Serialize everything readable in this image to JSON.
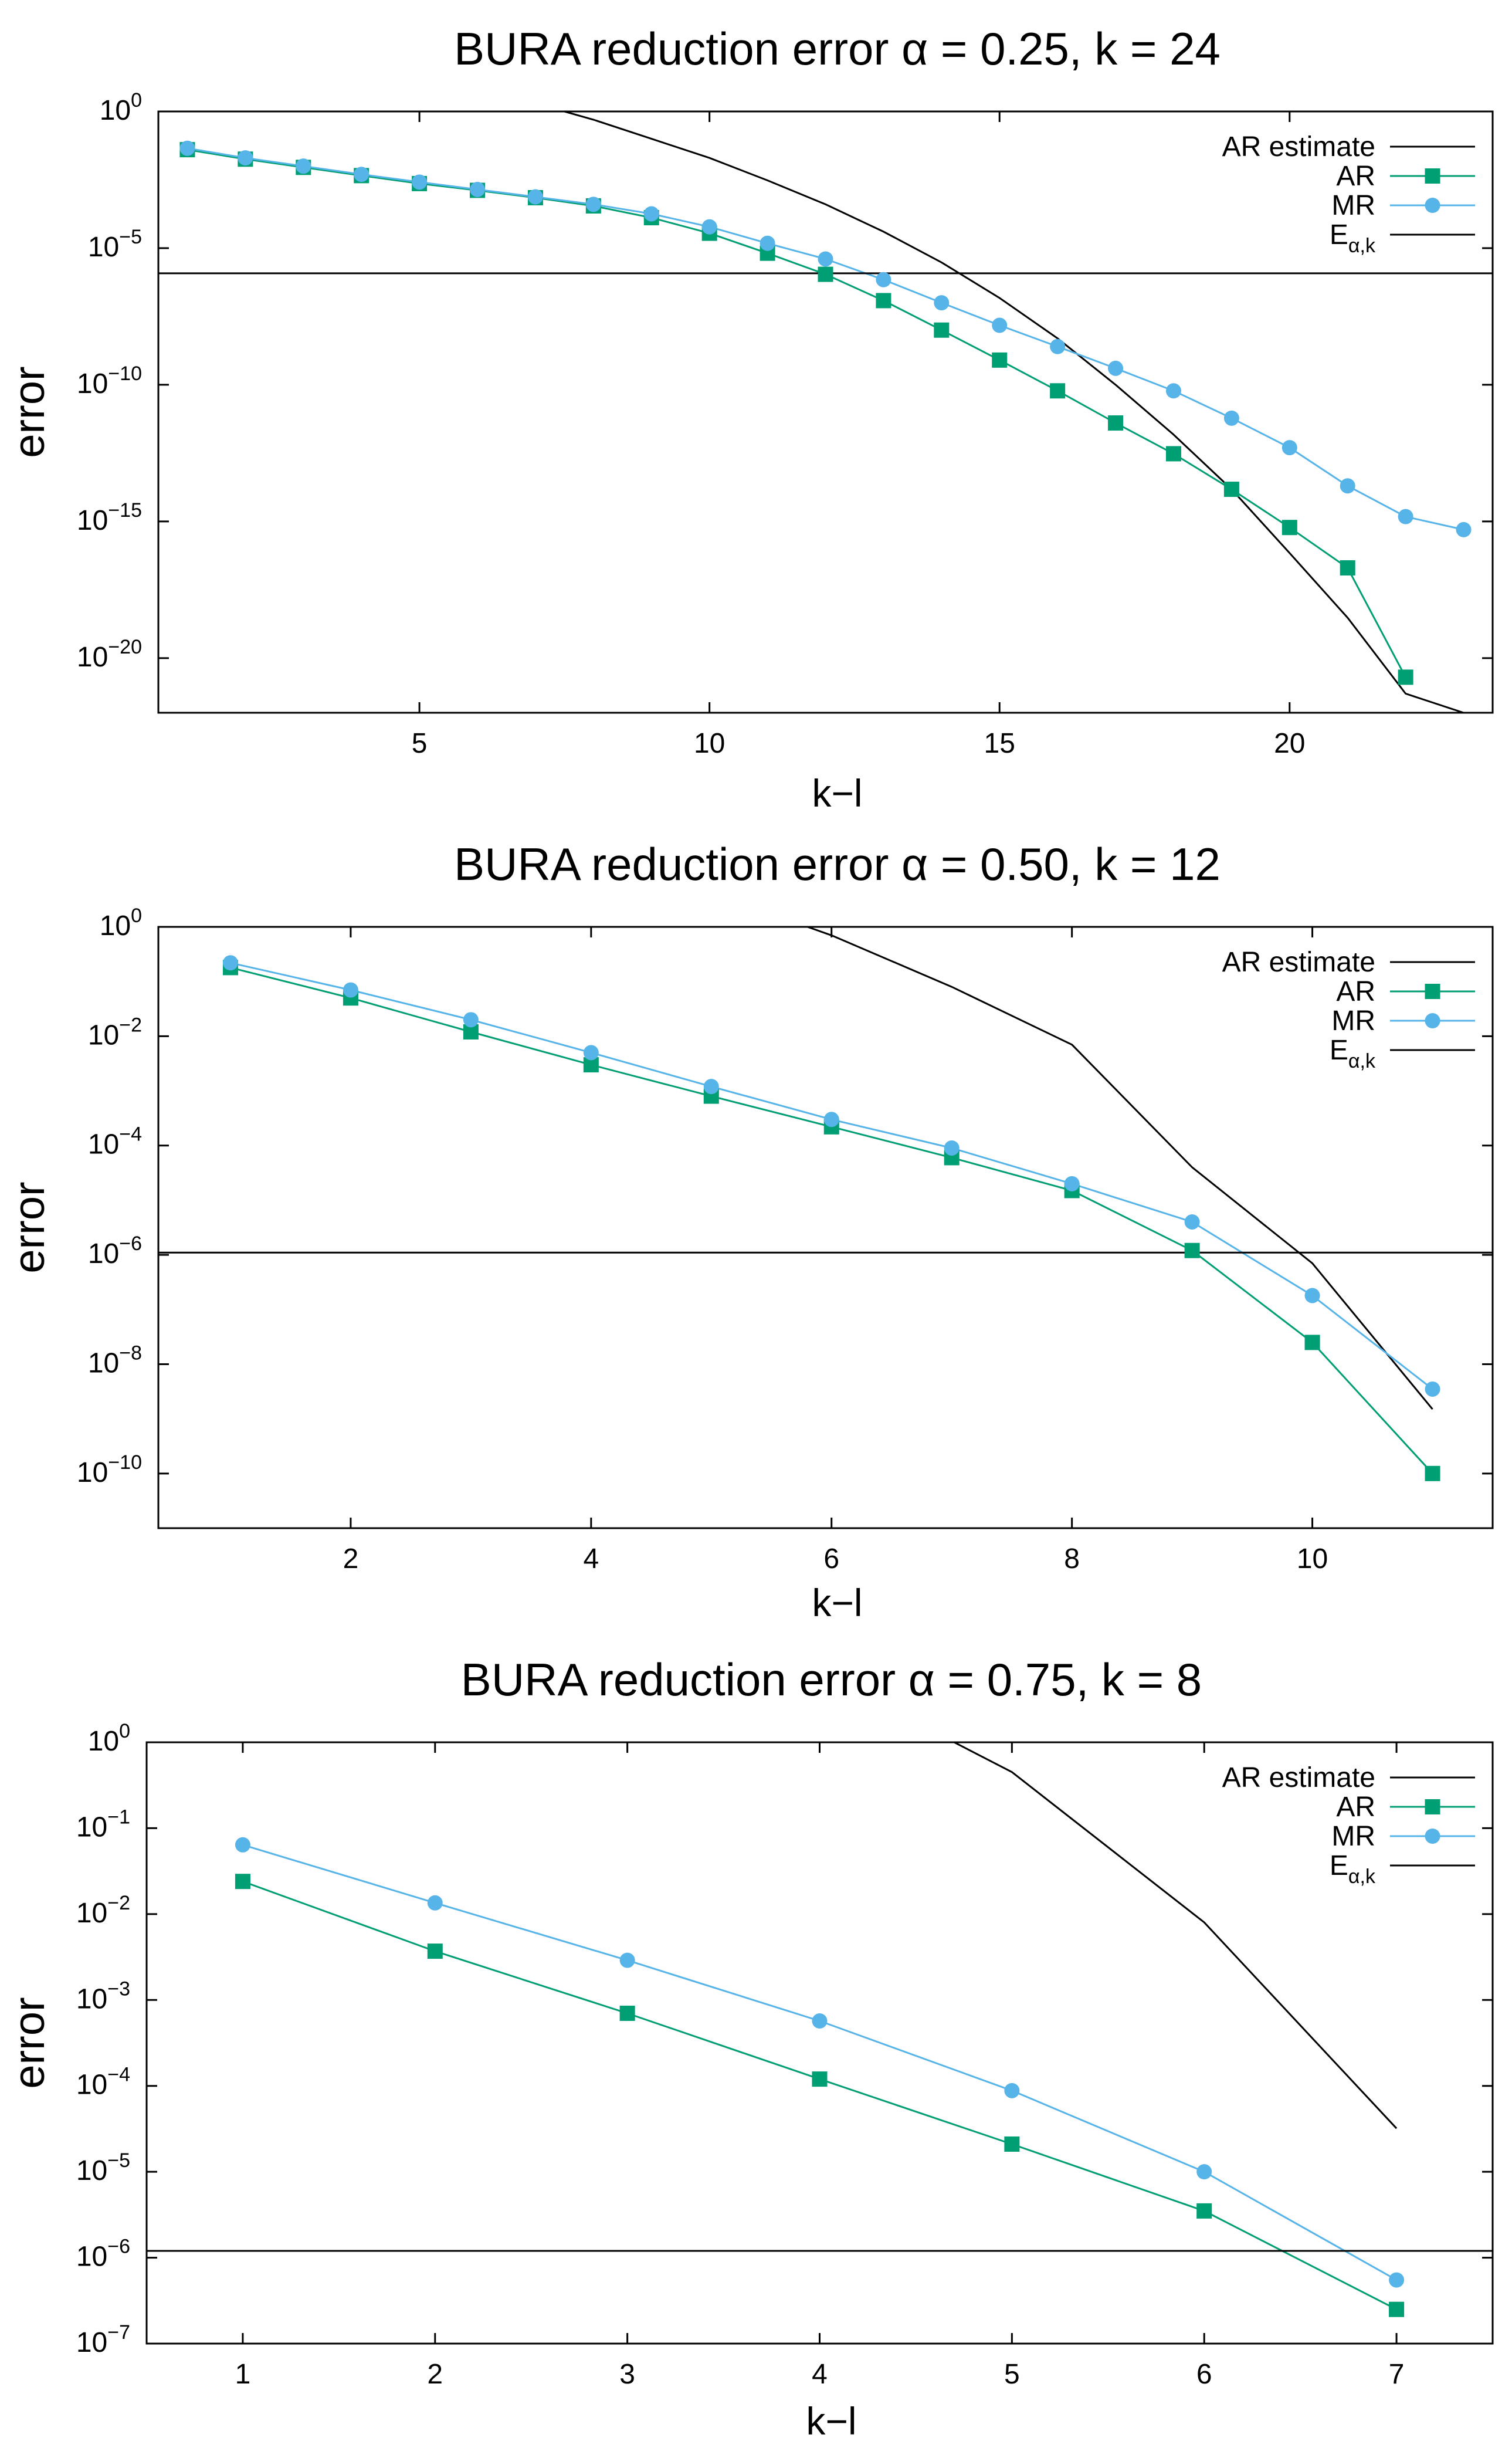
{
  "chart_data": [
    {
      "type": "line",
      "title": "BURA reduction error α = 0.25, k = 24",
      "xlabel": "k−l",
      "ylabel": "error",
      "yscale": "log",
      "xlim": [
        0.5,
        23.5
      ],
      "ylim": [
        1e-22,
        1
      ],
      "xticks": [
        5,
        10,
        15,
        20
      ],
      "yticks": [
        {
          "value": 1,
          "base": "10",
          "exp": "0"
        },
        {
          "value": 1e-05,
          "base": "10",
          "exp": "−5"
        },
        {
          "value": 1e-10,
          "base": "10",
          "exp": "−10"
        },
        {
          "value": 1e-15,
          "base": "10",
          "exp": "−15"
        },
        {
          "value": 1e-20,
          "base": "10",
          "exp": "−20"
        }
      ],
      "legend_position": "top-right",
      "series": [
        {
          "name": "AR estimate",
          "legend_label": "AR estimate",
          "style": "line",
          "color": "#000000",
          "x": [
            7.5,
            8,
            9,
            10,
            11,
            12,
            13,
            14,
            15,
            16,
            17,
            18,
            19,
            20,
            21,
            22,
            23
          ],
          "y": [
            1,
            0.5,
            0.1,
            0.02,
            0.003,
            0.0004,
            4e-05,
            3e-06,
            1.5e-07,
            5e-09,
            1e-10,
            1.5e-12,
            1.5e-14,
            7e-17,
            3e-19,
            5e-22,
            1e-22
          ]
        },
        {
          "name": "AR",
          "legend_label": "AR",
          "style": "line-square",
          "color": "#009e73",
          "x": [
            1,
            2,
            3,
            4,
            5,
            6,
            7,
            8,
            9,
            10,
            11,
            12,
            13,
            14,
            15,
            16,
            17,
            18,
            19,
            20,
            21,
            22
          ],
          "y": [
            0.04,
            0.018,
            0.009,
            0.0045,
            0.0023,
            0.0013,
            0.0007,
            0.00035,
            0.00013,
            3.5e-05,
            6.5e-06,
            1.1e-06,
            1.2e-07,
            1e-08,
            8e-10,
            6e-11,
            4e-12,
            3e-13,
            1.5e-14,
            6e-16,
            2e-17,
            2e-21
          ]
        },
        {
          "name": "MR",
          "legend_label": "MR",
          "style": "line-circle",
          "color": "#56b4e9",
          "x": [
            1,
            2,
            3,
            4,
            5,
            6,
            7,
            8,
            9,
            10,
            11,
            12,
            13,
            14,
            15,
            16,
            17,
            18,
            19,
            20,
            21,
            22,
            23
          ],
          "y": [
            0.045,
            0.02,
            0.01,
            0.005,
            0.0026,
            0.0014,
            0.00075,
            0.0004,
            0.00018,
            6e-05,
            1.5e-05,
            4e-06,
            7e-07,
            1e-07,
            1.5e-08,
            2.5e-09,
            4e-10,
            6e-11,
            6e-12,
            5e-13,
            2e-14,
            1.5e-15,
            5e-16
          ]
        },
        {
          "name": "E_alpha_k",
          "legend_base": "E",
          "legend_sub": "α,k",
          "style": "hline",
          "color": "#000000",
          "y": 1.2e-06
        }
      ]
    },
    {
      "type": "line",
      "title": "BURA reduction error α = 0.50, k = 12",
      "xlabel": "k−l",
      "ylabel": "error",
      "yscale": "log",
      "xlim": [
        0.4,
        11.5
      ],
      "ylim": [
        1e-11,
        1
      ],
      "xticks": [
        2,
        4,
        6,
        8,
        10
      ],
      "yticks": [
        {
          "value": 1,
          "base": "10",
          "exp": "0"
        },
        {
          "value": 0.01,
          "base": "10",
          "exp": "−2"
        },
        {
          "value": 0.0001,
          "base": "10",
          "exp": "−4"
        },
        {
          "value": 1e-06,
          "base": "10",
          "exp": "−6"
        },
        {
          "value": 1e-08,
          "base": "10",
          "exp": "−8"
        },
        {
          "value": 1e-10,
          "base": "10",
          "exp": "−10"
        }
      ],
      "legend_position": "top-right",
      "series": [
        {
          "name": "AR estimate",
          "legend_label": "AR estimate",
          "style": "line",
          "color": "#000000",
          "x": [
            5.8,
            6,
            7,
            8,
            9,
            10,
            11
          ],
          "y": [
            1,
            0.7,
            0.08,
            0.007,
            4e-05,
            7e-07,
            1.5e-09
          ]
        },
        {
          "name": "AR",
          "legend_label": "AR",
          "style": "line-square",
          "color": "#009e73",
          "x": [
            1,
            2,
            3,
            4,
            5,
            6,
            7,
            8,
            9,
            10,
            11
          ],
          "y": [
            0.18,
            0.05,
            0.012,
            0.003,
            0.0008,
            0.00022,
            6e-05,
            1.5e-05,
            1.2e-06,
            2.5e-08,
            1e-10
          ]
        },
        {
          "name": "MR",
          "legend_label": "MR",
          "style": "line-circle",
          "color": "#56b4e9",
          "x": [
            1,
            2,
            3,
            4,
            5,
            6,
            7,
            8,
            9,
            10,
            11
          ],
          "y": [
            0.22,
            0.07,
            0.02,
            0.005,
            0.0012,
            0.0003,
            9e-05,
            2e-05,
            4e-06,
            1.8e-07,
            3.5e-09
          ]
        },
        {
          "name": "E_alpha_k",
          "legend_base": "E",
          "legend_sub": "α,k",
          "style": "hline",
          "color": "#000000",
          "y": 1.1e-06
        }
      ]
    },
    {
      "type": "line",
      "title": "BURA reduction error α = 0.75, k = 8",
      "xlabel": "k−l",
      "ylabel": "error",
      "yscale": "log",
      "xlim": [
        0.5,
        7.5
      ],
      "ylim": [
        1e-07,
        1
      ],
      "xticks": [
        1,
        2,
        3,
        4,
        5,
        6,
        7
      ],
      "yticks": [
        {
          "value": 1,
          "base": "10",
          "exp": "0"
        },
        {
          "value": 0.1,
          "base": "10",
          "exp": "−1"
        },
        {
          "value": 0.01,
          "base": "10",
          "exp": "−2"
        },
        {
          "value": 0.001,
          "base": "10",
          "exp": "−3"
        },
        {
          "value": 0.0001,
          "base": "10",
          "exp": "−4"
        },
        {
          "value": 1e-05,
          "base": "10",
          "exp": "−5"
        },
        {
          "value": 1e-06,
          "base": "10",
          "exp": "−6"
        },
        {
          "value": 1e-07,
          "base": "10",
          "exp": "−7"
        }
      ],
      "legend_position": "top-right",
      "series": [
        {
          "name": "AR estimate",
          "legend_label": "AR estimate",
          "style": "line",
          "color": "#000000",
          "x": [
            4.7,
            5,
            6,
            7
          ],
          "y": [
            1,
            0.45,
            0.008,
            3.2e-05
          ]
        },
        {
          "name": "AR",
          "legend_label": "AR",
          "style": "line-square",
          "color": "#009e73",
          "x": [
            1,
            2,
            3,
            4,
            5,
            6,
            7
          ],
          "y": [
            0.024,
            0.0037,
            0.0007,
            0.00012,
            2.1e-05,
            3.5e-06,
            2.5e-07
          ]
        },
        {
          "name": "MR",
          "legend_label": "MR",
          "style": "line-circle",
          "color": "#56b4e9",
          "x": [
            1,
            2,
            3,
            4,
            5,
            6,
            7
          ],
          "y": [
            0.064,
            0.0135,
            0.0029,
            0.00057,
            8.8e-05,
            1e-05,
            5.5e-07
          ]
        },
        {
          "name": "E_alpha_k",
          "legend_base": "E",
          "legend_sub": "α,k",
          "style": "hline",
          "color": "#000000",
          "y": 1.2e-06
        }
      ]
    }
  ]
}
